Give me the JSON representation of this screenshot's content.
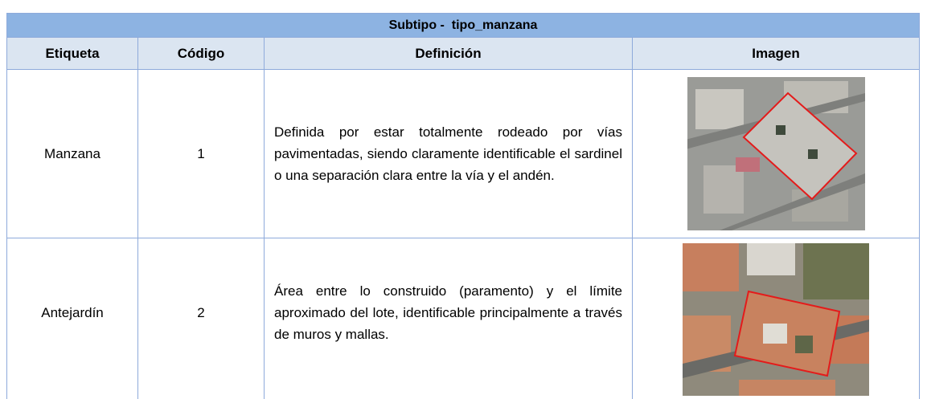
{
  "table": {
    "title": "Subtipo -  tipo_manzana",
    "headers": [
      "Etiqueta",
      "Código",
      "Definición",
      "Imagen"
    ],
    "rows": [
      [
        "Manzana",
        "1",
        "Definida por estar totalmente rodeado por vías pavimentadas, siendo claramente identificable el sardinel o una separación clara entre la vía y el andén."
      ],
      [
        "Antejardín",
        "2",
        "Área entre lo construido (paramento) y el límite aproximado del lote, identificable principalmente a través de muros y mallas."
      ]
    ]
  }
}
